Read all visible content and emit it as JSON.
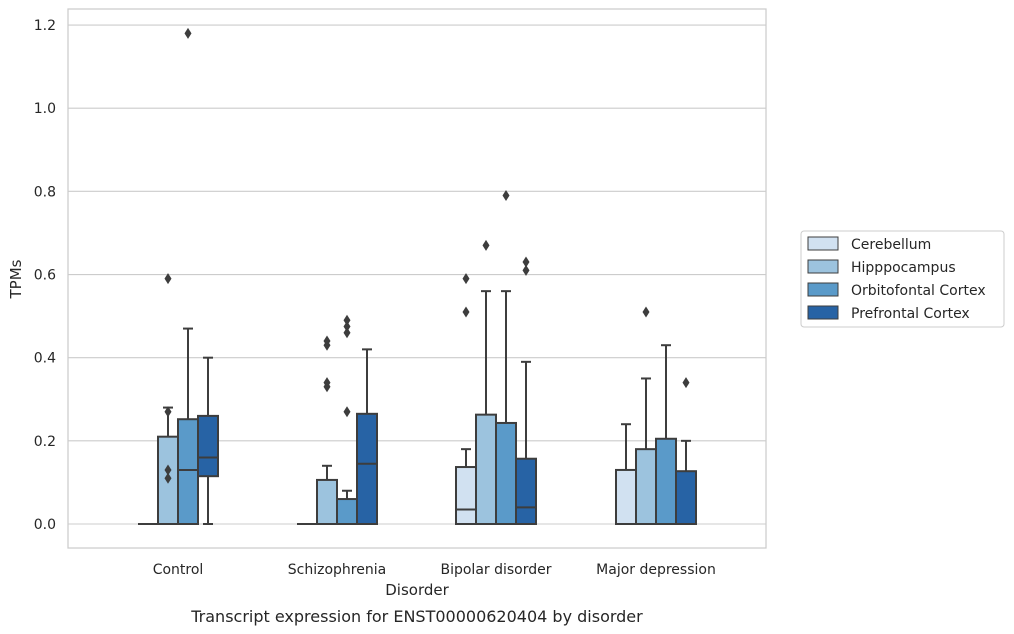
{
  "chart_data": {
    "type": "box",
    "title": "",
    "caption": "Transcript expression for ENST00000620404 by disorder",
    "xlabel": "Disorder",
    "ylabel": "TPMs",
    "ylim": [
      -0.055,
      1.24
    ],
    "yticks": [
      0.0,
      0.2,
      0.4,
      0.6,
      0.8,
      1.0,
      1.2
    ],
    "ytick_labels": [
      "0.0",
      "0.2",
      "0.4",
      "0.6",
      "0.8",
      "1.0",
      "1.2"
    ],
    "grid": "horizontal",
    "legend_position": "right",
    "categories": [
      "Control",
      "Schizophrenia",
      "Bipolar disorder",
      "Major depression"
    ],
    "series": [
      {
        "name": "Cerebellum",
        "color": "#d1e1f1",
        "boxes": [
          {
            "q1": 0.0,
            "median": 0.0,
            "q3": 0.0,
            "whisker_low": 0.0,
            "whisker_high": 0.0,
            "outliers": []
          },
          {
            "q1": 0.0,
            "median": 0.0,
            "q3": 0.0,
            "whisker_low": 0.0,
            "whisker_high": 0.0,
            "outliers": []
          },
          {
            "q1": 0.0,
            "median": 0.035,
            "q3": 0.137,
            "whisker_low": 0.0,
            "whisker_high": 0.18,
            "outliers": [
              0.51,
              0.59
            ]
          },
          {
            "q1": 0.0,
            "median": 0.0,
            "q3": 0.13,
            "whisker_low": 0.0,
            "whisker_high": 0.24,
            "outliers": []
          }
        ]
      },
      {
        "name": "Hipppocampus",
        "color": "#9cc3de",
        "boxes": [
          {
            "q1": 0.0,
            "median": 0.0,
            "q3": 0.21,
            "whisker_low": 0.0,
            "whisker_high": 0.28,
            "outliers": [
              0.11,
              0.13,
              0.27,
              0.59
            ]
          },
          {
            "q1": 0.0,
            "median": 0.0,
            "q3": 0.106,
            "whisker_low": 0.0,
            "whisker_high": 0.14,
            "outliers": [
              0.33,
              0.34,
              0.43,
              0.44
            ]
          },
          {
            "q1": 0.0,
            "median": 0.0,
            "q3": 0.263,
            "whisker_low": 0.0,
            "whisker_high": 0.56,
            "outliers": [
              0.67
            ]
          },
          {
            "q1": 0.0,
            "median": 0.0,
            "q3": 0.18,
            "whisker_low": 0.0,
            "whisker_high": 0.35,
            "outliers": [
              0.51
            ]
          }
        ]
      },
      {
        "name": "Orbitofontal Cortex",
        "color": "#5a9ac9",
        "boxes": [
          {
            "q1": 0.0,
            "median": 0.13,
            "q3": 0.252,
            "whisker_low": 0.0,
            "whisker_high": 0.47,
            "outliers": [
              1.18
            ]
          },
          {
            "q1": 0.0,
            "median": 0.0,
            "q3": 0.06,
            "whisker_low": 0.0,
            "whisker_high": 0.08,
            "outliers": [
              0.27,
              0.46,
              0.475,
              0.49
            ]
          },
          {
            "q1": 0.0,
            "median": 0.0,
            "q3": 0.243,
            "whisker_low": 0.0,
            "whisker_high": 0.56,
            "outliers": [
              0.79
            ]
          },
          {
            "q1": 0.0,
            "median": 0.0,
            "q3": 0.205,
            "whisker_low": 0.0,
            "whisker_high": 0.43,
            "outliers": []
          }
        ]
      },
      {
        "name": "Prefrontal Cortex",
        "color": "#2763a5",
        "boxes": [
          {
            "q1": 0.115,
            "median": 0.16,
            "q3": 0.26,
            "whisker_low": 0.0,
            "whisker_high": 0.4,
            "outliers": []
          },
          {
            "q1": 0.0,
            "median": 0.145,
            "q3": 0.265,
            "whisker_low": 0.0,
            "whisker_high": 0.42,
            "outliers": []
          },
          {
            "q1": 0.0,
            "median": 0.04,
            "q3": 0.157,
            "whisker_low": 0.0,
            "whisker_high": 0.39,
            "outliers": [
              0.61,
              0.63
            ]
          },
          {
            "q1": 0.0,
            "median": 0.0,
            "q3": 0.127,
            "whisker_low": 0.0,
            "whisker_high": 0.2,
            "outliers": [
              0.34
            ]
          }
        ]
      }
    ]
  }
}
